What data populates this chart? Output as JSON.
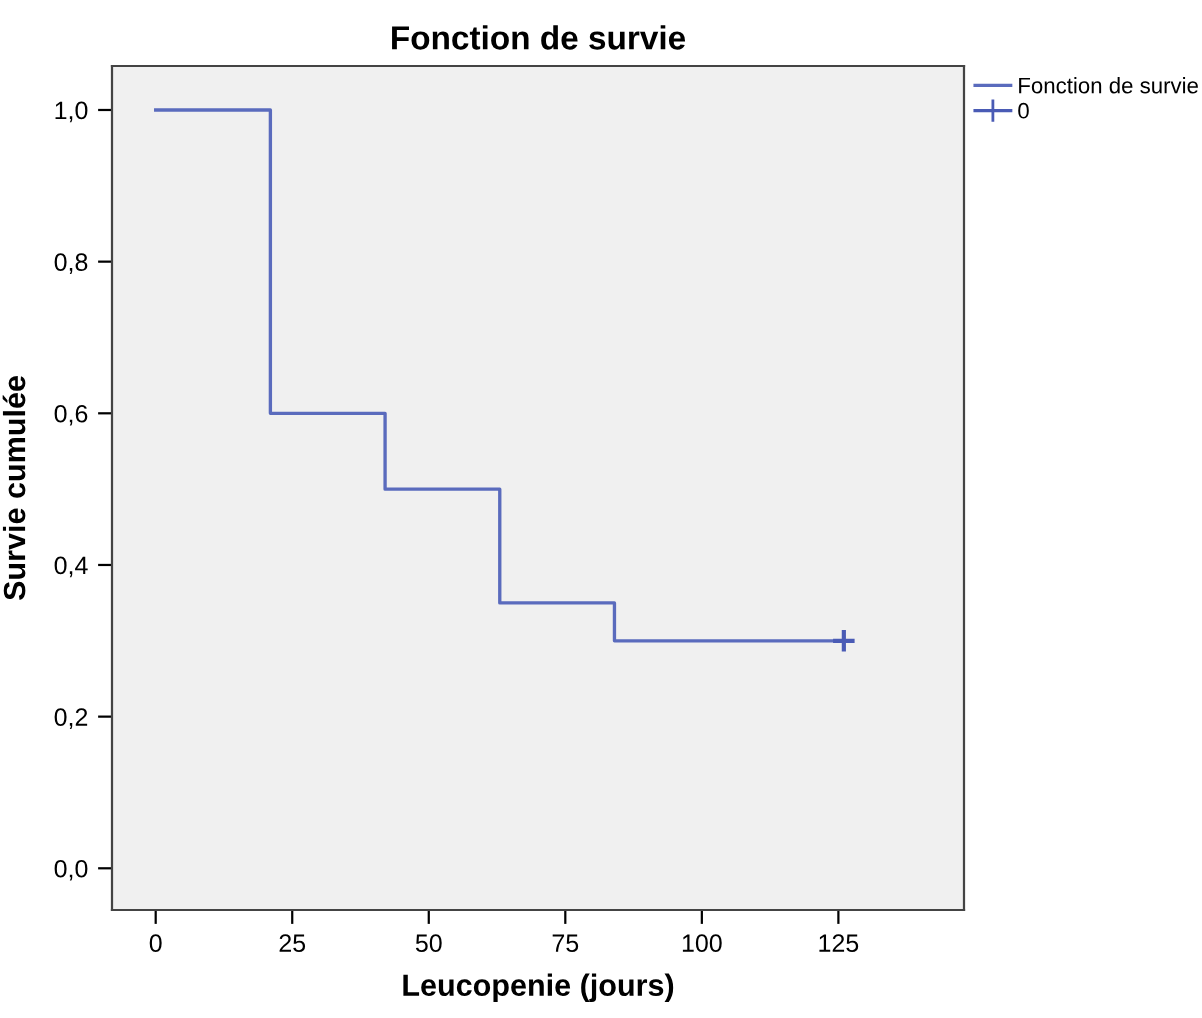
{
  "chart_data": {
    "type": "step",
    "title": "Fonction de survie",
    "xlabel": "Leucopenie (jours)",
    "ylabel": "Survie cumulée",
    "series": [
      {
        "name": "Fonction de survie",
        "color": "#5a6bbd",
        "x": [
          0,
          21,
          42,
          63,
          84,
          126
        ],
        "values": [
          1.0,
          0.6,
          0.5,
          0.35,
          0.3,
          0.3
        ]
      },
      {
        "name": "0",
        "type": "scatter",
        "color": "#4a5bb5",
        "marker": "cross",
        "x": [
          126
        ],
        "values": [
          0.3
        ]
      }
    ],
    "xlim": [
      -8,
      148
    ],
    "xticks": [
      0,
      25,
      50,
      75,
      100,
      125
    ],
    "ylim": [
      -0.055,
      1.058
    ],
    "yticks": [
      {
        "value": 0.0,
        "label": "0,0"
      },
      {
        "value": 0.2,
        "label": "0,2"
      },
      {
        "value": 0.4,
        "label": "0,4"
      },
      {
        "value": 0.6,
        "label": "0,6"
      },
      {
        "value": 0.8,
        "label": "0,8"
      },
      {
        "value": 1.0,
        "label": "1,0"
      }
    ],
    "grid": false,
    "legend": "top right"
  }
}
